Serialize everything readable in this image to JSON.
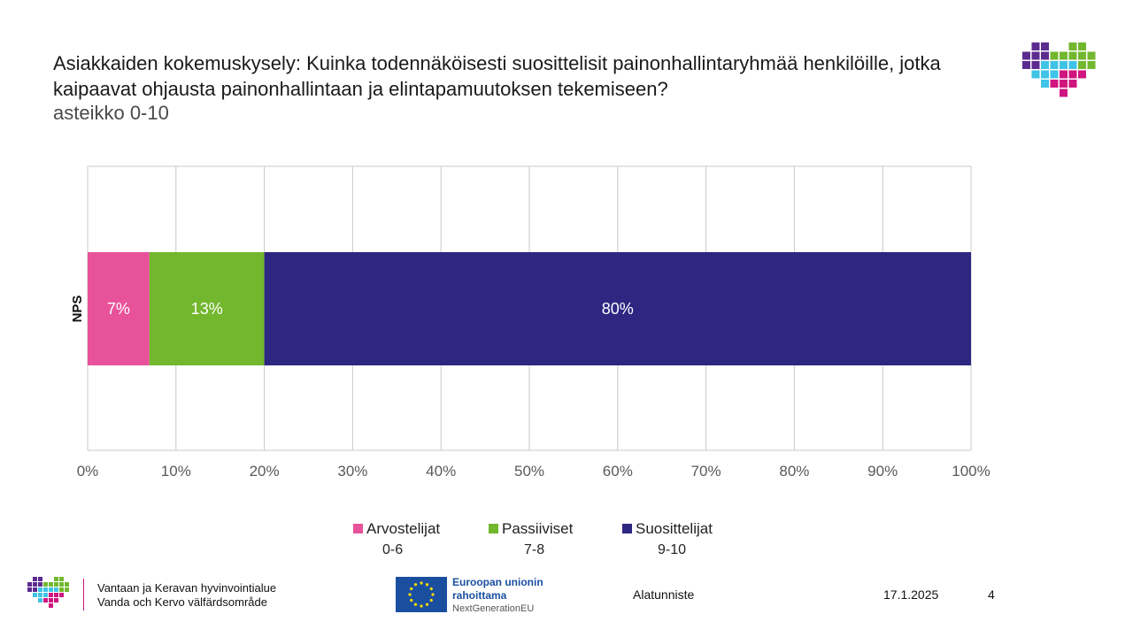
{
  "title": "Asiakkaiden kokemuskysely: Kuinka todennäköisesti suosittelisit painonhallintaryhmää henkilöille, jotka kaipaavat ohjausta painonhallintaan ja elintapamuutoksen tekemiseen?",
  "subtitle": "asteikko 0-10",
  "chart_data": {
    "type": "bar",
    "orientation": "horizontal",
    "stacked": true,
    "categories": [
      "NPS"
    ],
    "series": [
      {
        "name": "Arvostelijat",
        "range": "0-6",
        "values": [
          7
        ],
        "label": "7%",
        "color": "#e8529a"
      },
      {
        "name": "Passiiviset",
        "range": "7-8",
        "values": [
          13
        ],
        "label": "13%",
        "color": "#72b72e"
      },
      {
        "name": "Suosittelijat",
        "range": "9-10",
        "values": [
          80
        ],
        "label": "80%",
        "color": "#2e2782"
      }
    ],
    "xlim": [
      0,
      100
    ],
    "xticks": [
      "0%",
      "10%",
      "20%",
      "30%",
      "40%",
      "50%",
      "60%",
      "70%",
      "80%",
      "90%",
      "100%"
    ],
    "grid": true,
    "legend": "bottom"
  },
  "footer": {
    "org_line1": "Vantaan ja Keravan hyvinvointialue",
    "org_line2": "Vanda och Kervo välfärdsområde",
    "eu_line1": "Euroopan unionin",
    "eu_line2": "rahoittama",
    "eu_line3": "NextGenerationEU",
    "note": "Alatunniste",
    "date": "17.1.2025",
    "page": "4"
  },
  "colors": {
    "logo_purple": "#5b2b8f",
    "logo_green": "#72b72e",
    "logo_cyan": "#3fc3e6",
    "logo_magenta": "#d0157f",
    "eu_blue": "#1a4fa0",
    "eu_star": "#ffdd00"
  }
}
